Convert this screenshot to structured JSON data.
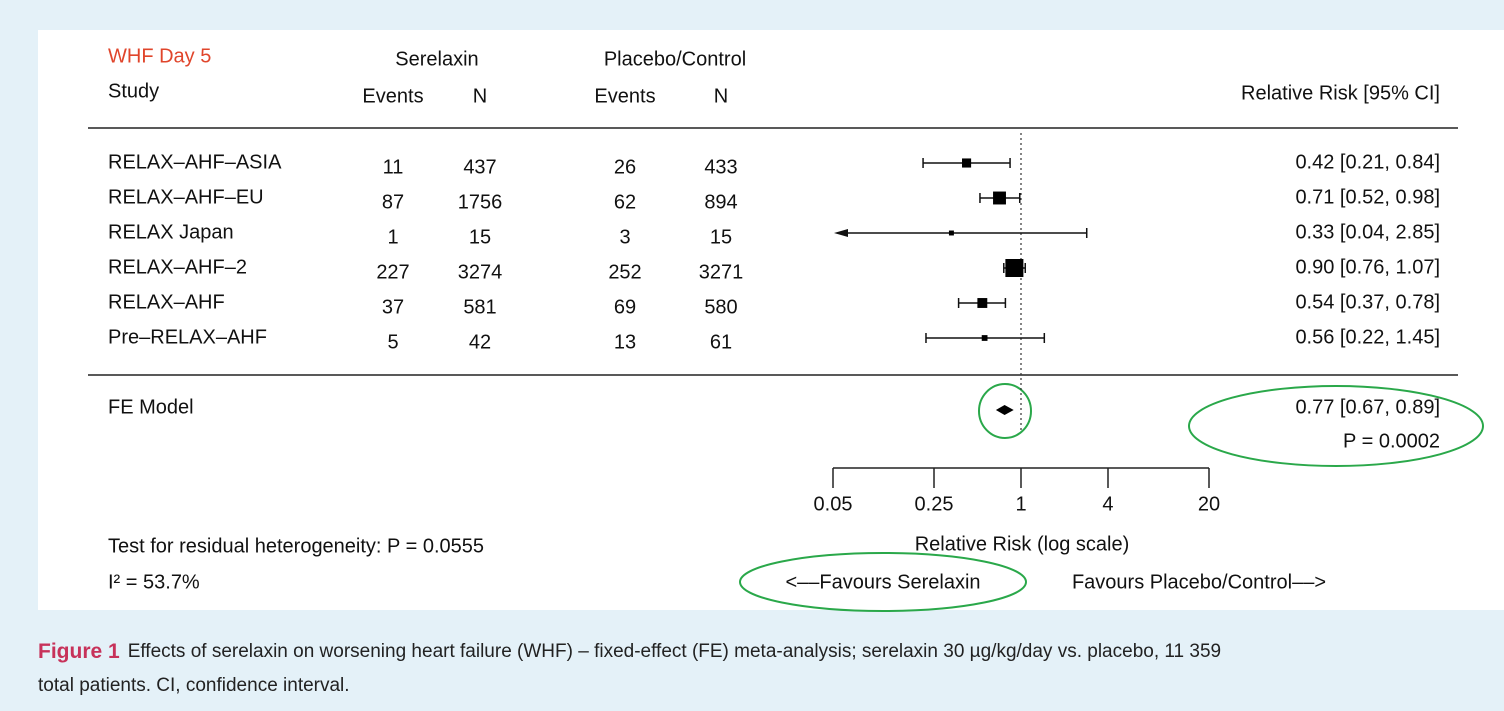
{
  "chart_data": {
    "type": "forest",
    "group_title": "WHF Day 5",
    "study_header": "Study",
    "treatment_header": "Serelaxin",
    "control_header": "Placebo/Control",
    "events_header": "Events",
    "n_header": "N",
    "effect_header": "Relative Risk [95% CI]",
    "studies": [
      {
        "name": "RELAX–AHF–ASIA",
        "t_events": 11,
        "t_n": 437,
        "c_events": 26,
        "c_n": 433,
        "rr": 0.42,
        "lower": 0.21,
        "upper": 0.84,
        "value_label": "0.42 [0.21, 0.84]"
      },
      {
        "name": "RELAX–AHF–EU",
        "t_events": 87,
        "t_n": 1756,
        "c_events": 62,
        "c_n": 894,
        "rr": 0.71,
        "lower": 0.52,
        "upper": 0.98,
        "value_label": "0.71 [0.52, 0.98]"
      },
      {
        "name": "RELAX Japan",
        "t_events": 1,
        "t_n": 15,
        "c_events": 3,
        "c_n": 15,
        "rr": 0.33,
        "lower": 0.04,
        "upper": 2.85,
        "value_label": "0.33 [0.04, 2.85]"
      },
      {
        "name": "RELAX–AHF–2",
        "t_events": 227,
        "t_n": 3274,
        "c_events": 252,
        "c_n": 3271,
        "rr": 0.9,
        "lower": 0.76,
        "upper": 1.07,
        "value_label": "0.90 [0.76, 1.07]"
      },
      {
        "name": "RELAX–AHF",
        "t_events": 37,
        "t_n": 581,
        "c_events": 69,
        "c_n": 580,
        "rr": 0.54,
        "lower": 0.37,
        "upper": 0.78,
        "value_label": "0.54 [0.37, 0.78]"
      },
      {
        "name": "Pre–RELAX–AHF",
        "t_events": 5,
        "t_n": 42,
        "c_events": 13,
        "c_n": 61,
        "rr": 0.56,
        "lower": 0.22,
        "upper": 1.45,
        "value_label": "0.56 [0.22, 1.45]"
      }
    ],
    "model": {
      "name": "FE Model",
      "rr": 0.77,
      "lower": 0.67,
      "upper": 0.89,
      "value_label": "0.77 [0.67, 0.89]",
      "p_label": "P = 0.0002"
    },
    "heterogeneity": "Test for residual heterogeneity: P = 0.0555",
    "i2": "I² = 53.7%",
    "xlabel": "Relative Risk (log scale)",
    "favours_left": "<––Favours Serelaxin",
    "favours_right": "Favours Placebo/Control––>",
    "log_x": true,
    "xlim": [
      0.05,
      20
    ],
    "xticks": [
      0.05,
      0.25,
      1,
      4,
      20
    ],
    "reference": 1
  },
  "caption": {
    "label": "Figure 1",
    "lines": [
      "Effects of serelaxin on worsening heart failure (WHF) – fixed-effect (FE) meta-analysis; serelaxin 30 µg/kg/day vs. placebo, 11 359",
      "total patients. CI, confidence interval."
    ]
  }
}
